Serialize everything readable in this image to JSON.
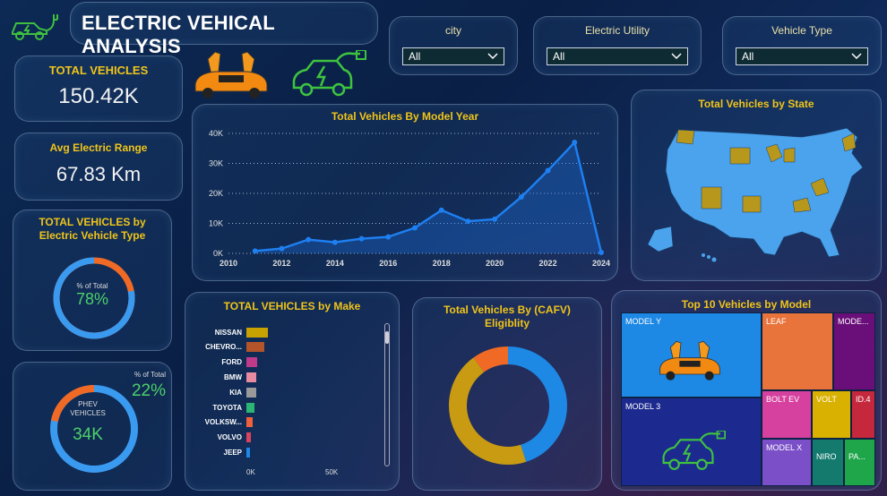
{
  "header": {
    "title": "ELECTRIC VEHICAL ANALYSIS"
  },
  "filters": [
    {
      "label": "city",
      "value": "All"
    },
    {
      "label": "Electric Utility",
      "value": "All"
    },
    {
      "label": "Vehicle Type",
      "value": "All"
    }
  ],
  "kpis": {
    "total_label": "TOTAL VEHICLES",
    "total_value": "150.42K",
    "range_label": "Avg Electric Range",
    "range_value": "67.83 Km"
  },
  "ev_type": {
    "title": "TOTAL VEHICLES by Electric Vehicle Type",
    "inner_label": "% of Total",
    "inner_value": "78%",
    "share": 0.78
  },
  "phev": {
    "pct_label": "% of Total",
    "pct_value": "22%",
    "inner_label": "PHEV VEHICLES",
    "inner_value": "34K",
    "share": 0.22
  },
  "model_year_chart": {
    "title": "Total Vehicles By Model Year"
  },
  "state_map": {
    "title": "Total Vehicles by State"
  },
  "make_chart": {
    "title": "TOTAL VEHICLES by Make"
  },
  "cafv_chart": {
    "title": "Total Vehicles By (CAFV) Eligiblity"
  },
  "treemap": {
    "title": "Top 10 Vehicles by Model",
    "cells": [
      {
        "label": "MODEL Y",
        "color": "#1e88e5"
      },
      {
        "label": "MODEL 3",
        "color": "#1c2a8f"
      },
      {
        "label": "LEAF",
        "color": "#e8743b"
      },
      {
        "label": "MODE...",
        "color": "#6a0f7a"
      },
      {
        "label": "BOLT EV",
        "color": "#d6409f"
      },
      {
        "label": "VOLT",
        "color": "#d9b100"
      },
      {
        "label": "ID.4",
        "color": "#c5283d"
      },
      {
        "label": "MODEL X",
        "color": "#7b4fc8"
      },
      {
        "label": "NIRO",
        "color": "#147a6e"
      },
      {
        "label": "PA...",
        "color": "#1fa64a"
      }
    ]
  },
  "chart_data": [
    {
      "type": "area",
      "title": "Total Vehicles By Model Year",
      "x": [
        2011,
        2012,
        2013,
        2014,
        2015,
        2016,
        2017,
        2018,
        2019,
        2020,
        2021,
        2022,
        2023,
        2024
      ],
      "values": [
        800,
        1600,
        4600,
        3700,
        4900,
        5500,
        8500,
        14400,
        10700,
        11400,
        18800,
        27600,
        37000,
        300
      ],
      "x_ticks": [
        "2010",
        "2012",
        "2014",
        "2016",
        "2018",
        "2020",
        "2022",
        "2024"
      ],
      "y_ticks": [
        "0K",
        "10K",
        "20K",
        "30K",
        "40K"
      ],
      "xlim": [
        2010,
        2024
      ],
      "ylim": [
        0,
        40000
      ],
      "grid": true,
      "color": "#1e7ff0"
    },
    {
      "type": "bar",
      "title": "TOTAL VEHICLES by Make",
      "orientation": "horizontal",
      "categories": [
        "NISSAN",
        "CHEVRO...",
        "FORD",
        "BMW",
        "KIA",
        "TOYOTA",
        "VOLKSW...",
        "VOLVO",
        "JEEP"
      ],
      "values": [
        13500,
        11500,
        7000,
        6500,
        6000,
        5000,
        4000,
        3000,
        2500
      ],
      "colors": [
        "#c8a200",
        "#b4542a",
        "#c03a8a",
        "#e88aa0",
        "#9a9a9a",
        "#2bb673",
        "#f0603a",
        "#d9445c",
        "#1e88e5"
      ],
      "x_ticks": [
        "0K",
        "50K"
      ],
      "xlim": [
        0,
        100000
      ]
    },
    {
      "type": "pie",
      "title": "Total Vehicles By (CAFV) Eligiblity",
      "values": [
        45,
        45,
        10
      ],
      "colors": [
        "#1e88e5",
        "#c89b12",
        "#f06a25"
      ]
    }
  ]
}
